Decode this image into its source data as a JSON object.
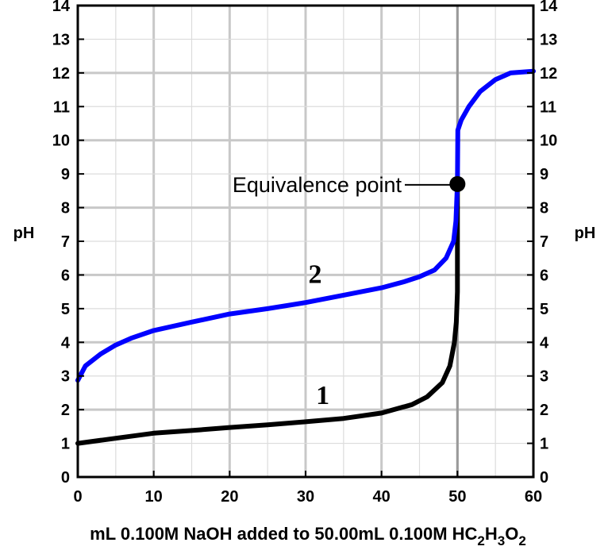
{
  "chart_data": {
    "type": "line",
    "xlabel": "mL 0.100M NaOH added to 50.00mL 0.100M HC2H3O2",
    "xlabel_parts": [
      "mL 0.100M NaOH added to 50.00mL 0.100M HC",
      "2",
      "H",
      "3",
      "O",
      "2"
    ],
    "ylabel": "pH",
    "ylabel_right": "pH",
    "xlim": [
      0,
      60
    ],
    "ylim": [
      0,
      14
    ],
    "x_ticks": [
      0,
      10,
      20,
      30,
      40,
      50,
      60
    ],
    "y_ticks": [
      0,
      1,
      2,
      3,
      4,
      5,
      6,
      7,
      8,
      9,
      10,
      11,
      12,
      13,
      14
    ],
    "grid": true,
    "series": [
      {
        "name": "1",
        "color": "#000000",
        "points": [
          [
            0,
            1.0
          ],
          [
            5,
            1.15
          ],
          [
            10,
            1.3
          ],
          [
            15,
            1.38
          ],
          [
            20,
            1.47
          ],
          [
            25,
            1.55
          ],
          [
            30,
            1.64
          ],
          [
            35,
            1.74
          ],
          [
            40,
            1.9
          ],
          [
            44,
            2.15
          ],
          [
            46,
            2.38
          ],
          [
            48,
            2.8
          ],
          [
            49,
            3.3
          ],
          [
            49.6,
            4.0
          ],
          [
            49.85,
            4.6
          ],
          [
            50.0,
            5.5
          ],
          [
            50.0,
            7.0
          ],
          [
            50.0,
            8.7
          ]
        ]
      },
      {
        "name": "2",
        "color": "#0000ff",
        "points": [
          [
            0,
            2.87
          ],
          [
            1,
            3.3
          ],
          [
            3,
            3.65
          ],
          [
            5,
            3.92
          ],
          [
            7,
            4.12
          ],
          [
            10,
            4.35
          ],
          [
            15,
            4.6
          ],
          [
            20,
            4.84
          ],
          [
            25,
            5.0
          ],
          [
            30,
            5.18
          ],
          [
            35,
            5.4
          ],
          [
            40,
            5.62
          ],
          [
            43,
            5.8
          ],
          [
            45,
            5.95
          ],
          [
            47,
            6.15
          ],
          [
            48.5,
            6.5
          ],
          [
            49.5,
            7.0
          ],
          [
            49.8,
            7.6
          ],
          [
            50.0,
            8.72
          ],
          [
            50.05,
            10.3
          ],
          [
            50.5,
            10.6
          ],
          [
            51.5,
            11.0
          ],
          [
            53,
            11.45
          ],
          [
            55,
            11.8
          ],
          [
            57,
            12.0
          ],
          [
            60,
            12.05
          ]
        ]
      }
    ],
    "curve_labels": [
      {
        "text": "1",
        "x": 31,
        "y": 2.45
      },
      {
        "text": "2",
        "x": 30,
        "y": 6.05
      }
    ],
    "annotations": [
      {
        "text": "Equivalence point",
        "x": 50,
        "y": 8.7
      }
    ]
  }
}
